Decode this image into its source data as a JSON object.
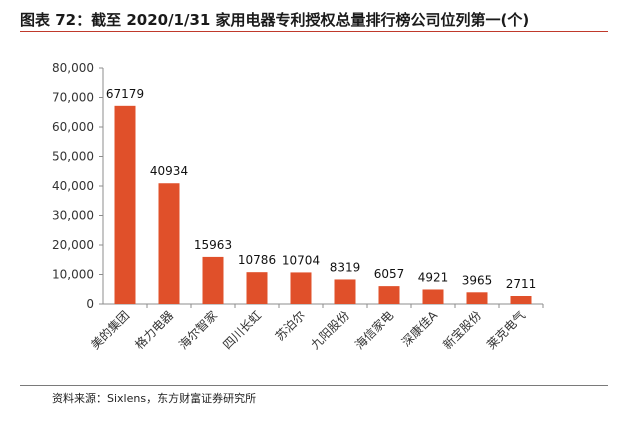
{
  "header": {
    "title": "图表 72：截至 2020/1/31 家用电器专利授权总量排行榜公司位列第一(个)"
  },
  "footer": {
    "source": "资料来源：Sixlens，东方财富证券研究所"
  },
  "colors": {
    "bar": "#E0502A",
    "rule": "#C0392B",
    "axis": "#8C8C8C"
  },
  "chart_data": {
    "type": "bar",
    "categories": [
      "美的集团",
      "格力电器",
      "海尔智家",
      "四川长虹",
      "苏泊尔",
      "九阳股份",
      "海信家电",
      "深康佳A",
      "新宝股份",
      "莱克电气"
    ],
    "values": [
      67179,
      40934,
      15963,
      10786,
      10704,
      8319,
      6057,
      4921,
      3965,
      2711
    ],
    "ylim": [
      0,
      80000
    ],
    "yticks": [
      0,
      10000,
      20000,
      30000,
      40000,
      50000,
      60000,
      70000,
      80000
    ],
    "ytick_labels": [
      "0",
      "10,000",
      "20,000",
      "30,000",
      "40,000",
      "50,000",
      "60,000",
      "70,000",
      "80,000"
    ],
    "xlabel": "",
    "ylabel": "",
    "grid": false,
    "data_labels": true
  }
}
